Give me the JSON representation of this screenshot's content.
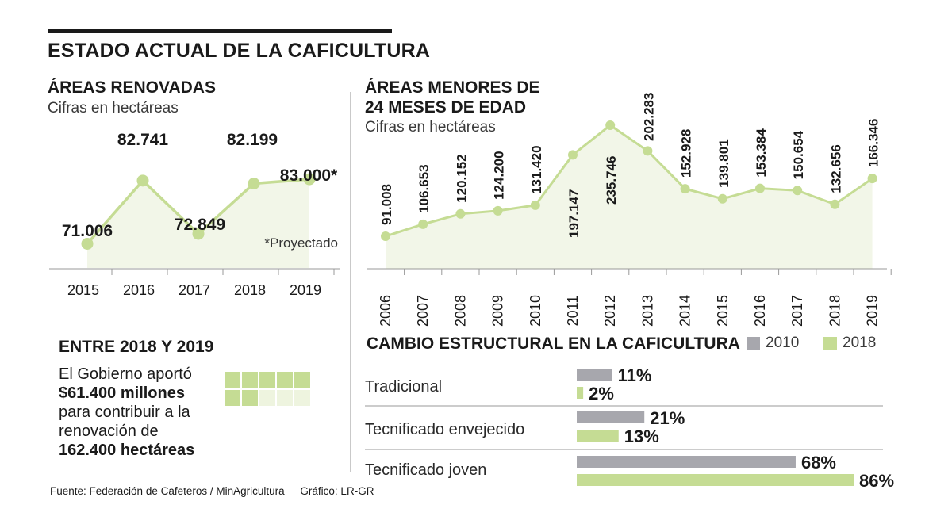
{
  "title": "ESTADO ACTUAL DE LA CAFICULTURA",
  "colors": {
    "green": "#c5dc94",
    "green_fill": "#f2f6e8",
    "green_light": "#eef4df",
    "gray": "#a7a7ad",
    "dark": "#1a1a1a"
  },
  "chart_data": [
    {
      "type": "area",
      "title": "ÁREAS RENOVADAS",
      "subtitle": "Cifras en hectáreas",
      "categories": [
        "2015",
        "2016",
        "2017",
        "2018",
        "2019"
      ],
      "values": [
        71006,
        82741,
        72849,
        82199,
        83000
      ],
      "labels": [
        "71.006",
        "82.741",
        "72.849",
        "82.199",
        "83.000*"
      ],
      "note": "*Proyectado",
      "ylim": [
        64000,
        92000
      ]
    },
    {
      "type": "area",
      "title": "ÁREAS MENORES DE 24 MESES DE EDAD",
      "title_lines": [
        "ÁREAS MENORES DE",
        "24 MESES DE EDAD"
      ],
      "subtitle": "Cifras en hectáreas",
      "categories": [
        "2006",
        "2007",
        "2008",
        "2009",
        "2010",
        "2011",
        "2012",
        "2013",
        "2014",
        "2015",
        "2016",
        "2017",
        "2018",
        "2019"
      ],
      "values": [
        91008,
        106653,
        120152,
        124200,
        131420,
        197147,
        235746,
        202283,
        152928,
        139801,
        153384,
        150654,
        132656,
        166346
      ],
      "labels": [
        "91.008",
        "106.653",
        "120.152",
        "124.200",
        "131.420",
        "197.147",
        "235.746",
        "202.283",
        "152.928",
        "139.801",
        "153.384",
        "150.654",
        "132.656",
        "166.346"
      ],
      "ylim": [
        50000,
        260000
      ]
    },
    {
      "type": "bar",
      "title": "CAMBIO ESTRUCTURAL EN LA CAFICULTURA",
      "categories": [
        "Tradicional",
        "Tecnificado envejecido",
        "Tecnificado joven"
      ],
      "series": [
        {
          "name": "2010",
          "values": [
            11,
            21,
            68
          ],
          "labels": [
            "11%",
            "21%",
            "68%"
          ]
        },
        {
          "name": "2018",
          "values": [
            2,
            13,
            86
          ],
          "labels": [
            "2%",
            "13%",
            "86%"
          ]
        }
      ],
      "xlim": [
        0,
        100
      ]
    }
  ],
  "info": {
    "title": "ENTRE 2018 Y 2019",
    "line1": "El Gobierno aportó",
    "amount": "$61.400 millones",
    "line3": "para contribuir a la",
    "line4": "renovación de",
    "hectares": "162.400 hectáreas",
    "grid_filled": 7,
    "grid_total": 10
  },
  "footer": {
    "source": "Fuente: Federación de Cafeteros / MinAgricultura",
    "credit": "Gráfico: LR-GR"
  }
}
